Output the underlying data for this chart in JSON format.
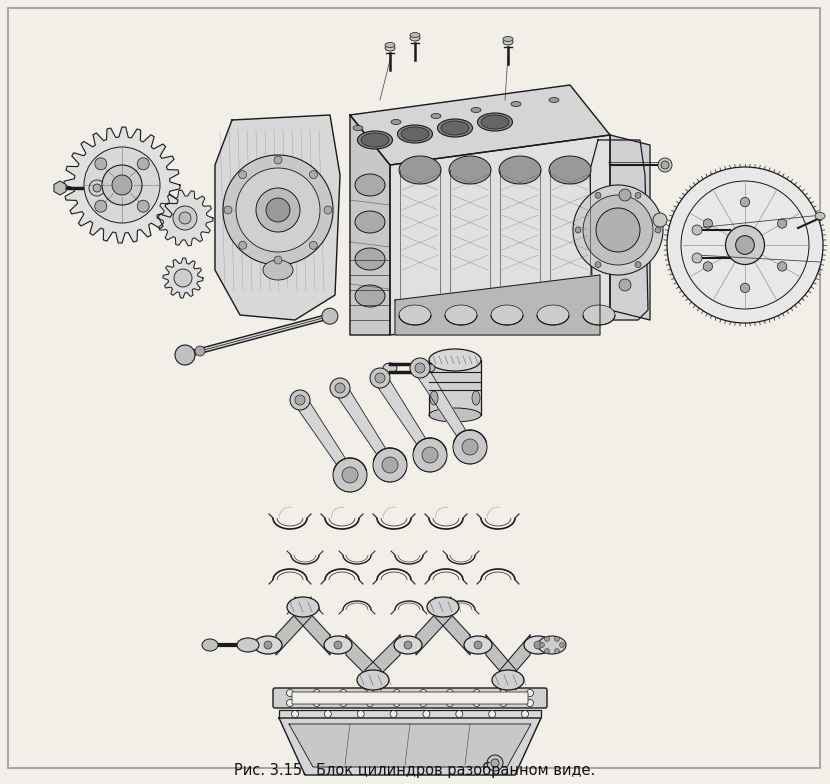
{
  "caption": "Рис. 3.15.  Блок цилиндров разобранном виде.",
  "caption_fontsize": 10.5,
  "bg_color": "#f2efe8",
  "border_color": "#999999",
  "fig_width": 8.3,
  "fig_height": 7.84,
  "dpi": 100,
  "ink_color": "#1a1a1a",
  "light_gray": "#c8c8c8",
  "mid_gray": "#aaaaaa",
  "dark_gray": "#888888"
}
